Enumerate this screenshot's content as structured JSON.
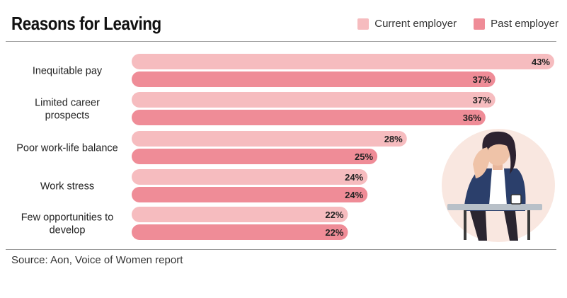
{
  "header": {
    "title": "Reasons for Leaving",
    "legend": [
      {
        "label": "Current employer",
        "color": "#f6bcbf"
      },
      {
        "label": "Past employer",
        "color": "#ef8c97"
      }
    ]
  },
  "footer": {
    "source": "Source: Aon, Voice of Women report"
  },
  "chart_data": {
    "type": "bar",
    "orientation": "horizontal",
    "title": "Reasons for Leaving",
    "categories": [
      [
        "Inequitable pay"
      ],
      [
        "Limited career",
        "prospects"
      ],
      [
        "Poor work-life balance"
      ],
      [
        "Work stress"
      ],
      [
        "Few opportunities to",
        "develop"
      ]
    ],
    "series": [
      {
        "name": "Current employer",
        "color": "#f6bcbf",
        "values": [
          43,
          37,
          28,
          24,
          22
        ]
      },
      {
        "name": "Past employer",
        "color": "#ef8c97",
        "values": [
          37,
          36,
          25,
          24,
          22
        ]
      }
    ],
    "value_suffix": "%",
    "xlim": [
      0,
      43
    ],
    "legend_position": "top-right",
    "grid": false
  }
}
